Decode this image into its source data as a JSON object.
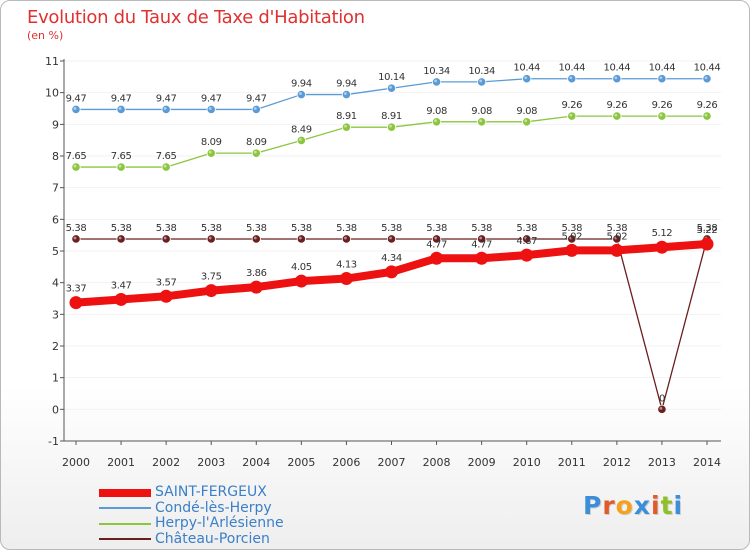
{
  "title": "Evolution du Taux de Taxe d'Habitation",
  "subtitle": "(en %)",
  "brand": {
    "text": "Proxiti",
    "letter_colors": [
      "#3a8fd8",
      "#e05a2a",
      "#f4a21c",
      "#3a8fd8",
      "#e05a2a",
      "#8fc02a",
      "#3a8fd8"
    ]
  },
  "chart_data": {
    "type": "line",
    "title": "Evolution du Taux de Taxe d'Habitation",
    "ylabel": "(en %)",
    "xlabel": "",
    "x": [
      "2000",
      "2001",
      "2002",
      "2003",
      "2004",
      "2005",
      "2006",
      "2007",
      "2008",
      "2009",
      "2010",
      "2011",
      "2012",
      "2013",
      "2014"
    ],
    "ylim": [
      -1,
      11
    ],
    "yticks": [
      "-1",
      "0",
      "1",
      "2",
      "3",
      "4",
      "5",
      "6",
      "7",
      "8",
      "9",
      "10",
      "11"
    ],
    "grid": true,
    "legend_position": "bottom-left",
    "series": [
      {
        "name": "SAINT-FERGEUX",
        "color": "#ee1111",
        "emphasis": "thick",
        "values": [
          3.37,
          3.47,
          3.57,
          3.75,
          3.86,
          4.05,
          4.13,
          4.34,
          4.77,
          4.77,
          4.87,
          5.02,
          5.02,
          5.12,
          5.22
        ],
        "labels": [
          "3.37",
          "3.47",
          "3.57",
          "3.75",
          "3.86",
          "4.05",
          "4.13",
          "4.34",
          "4.77",
          "4.77",
          "4.87",
          "5.02",
          "5.02",
          "5.12",
          "5.22"
        ]
      },
      {
        "name": "Condé-lès-Herpy",
        "color": "#5b9bd5",
        "emphasis": "thin",
        "values": [
          9.47,
          9.47,
          9.47,
          9.47,
          9.47,
          9.94,
          9.94,
          10.14,
          10.34,
          10.34,
          10.44,
          10.44,
          10.44,
          10.44,
          10.44
        ],
        "labels": [
          "9.47",
          "9.47",
          "9.47",
          "9.47",
          "9.47",
          "9.94",
          "9.94",
          "10.14",
          "10.34",
          "10.34",
          "10.44",
          "10.44",
          "10.44",
          "10.44",
          "10.44"
        ]
      },
      {
        "name": "Herpy-l'Arlésienne",
        "color": "#8cc63f",
        "emphasis": "thin",
        "values": [
          7.65,
          7.65,
          7.65,
          8.09,
          8.09,
          8.49,
          8.91,
          8.91,
          9.08,
          9.08,
          9.08,
          9.26,
          9.26,
          9.26,
          9.26
        ],
        "labels": [
          "7.65",
          "7.65",
          "7.65",
          "8.09",
          "8.09",
          "8.49",
          "8.91",
          "8.91",
          "9.08",
          "9.08",
          "9.08",
          "9.26",
          "9.26",
          "9.26",
          "9.26"
        ]
      },
      {
        "name": "Château-Porcien",
        "color": "#6b1f1f",
        "emphasis": "thin",
        "values": [
          5.38,
          5.38,
          5.38,
          5.38,
          5.38,
          5.38,
          5.38,
          5.38,
          5.38,
          5.38,
          5.38,
          5.38,
          5.38,
          0,
          5.38
        ],
        "labels": [
          "5.38",
          "5.38",
          "5.38",
          "5.38",
          "5.38",
          "5.38",
          "5.38",
          "5.38",
          "5.38",
          "5.38",
          "5.38",
          "5.38",
          "5.38",
          "0",
          "5.38"
        ]
      }
    ]
  }
}
